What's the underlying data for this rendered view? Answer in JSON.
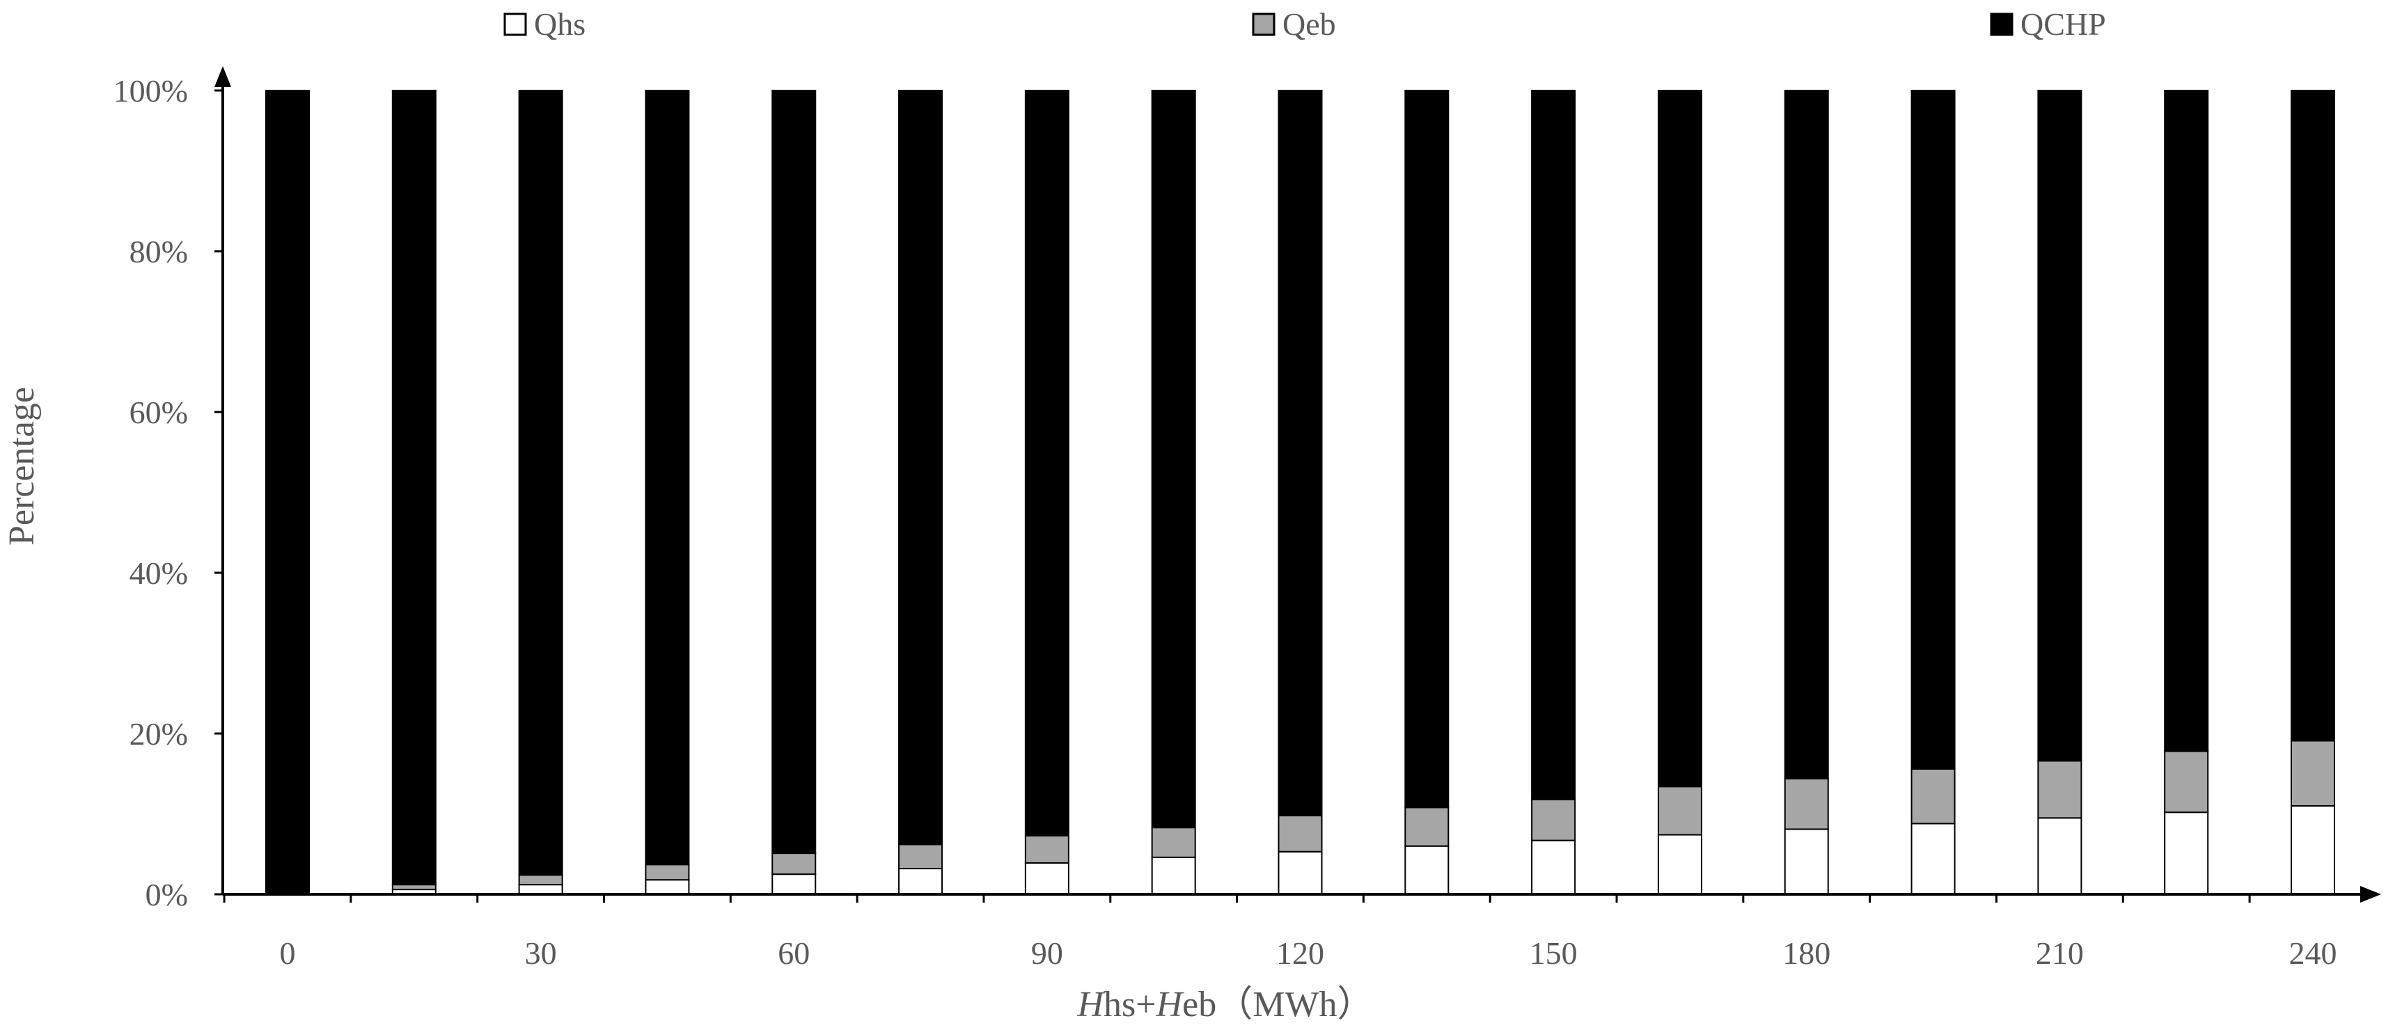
{
  "chart_data": {
    "type": "bar",
    "stacked": true,
    "percent_stacked": true,
    "x": [
      0,
      15,
      30,
      45,
      60,
      75,
      90,
      105,
      120,
      135,
      150,
      165,
      180,
      195,
      210,
      225,
      240
    ],
    "x_tick_labels": [
      "0",
      "30",
      "60",
      "90",
      "120",
      "150",
      "180",
      "210",
      "240"
    ],
    "y_tick_labels": [
      "0%",
      "20%",
      "40%",
      "60%",
      "80%",
      "100%"
    ],
    "ylim": [
      0,
      100
    ],
    "ylabel": "Percentage",
    "xlabel_italic": "H",
    "xlabel_parts": [
      {
        "text": "H",
        "italic": true
      },
      {
        "text": "hs+",
        "italic": false
      },
      {
        "text": "H",
        "italic": true
      },
      {
        "text": "eb（MWh）",
        "italic": false
      }
    ],
    "legend_position": "top",
    "series": [
      {
        "name": "Qhs",
        "color": "#ffffff",
        "values": [
          0,
          0.6,
          1.2,
          1.8,
          2.5,
          3.2,
          3.9,
          4.6,
          5.3,
          6.0,
          6.7,
          7.4,
          8.1,
          8.8,
          9.5,
          10.2,
          11.0
        ]
      },
      {
        "name": "Qeb",
        "color": "#a6a6a6",
        "values": [
          0,
          0.6,
          1.2,
          1.9,
          2.6,
          3.0,
          3.4,
          3.7,
          4.5,
          4.8,
          5.1,
          6.0,
          6.3,
          6.8,
          7.1,
          7.6,
          8.1
        ]
      },
      {
        "name": "QCHP",
        "color": "#000000",
        "values": [
          100,
          98.8,
          97.6,
          96.3,
          94.9,
          93.8,
          92.7,
          91.7,
          90.2,
          89.2,
          88.2,
          86.6,
          85.6,
          84.4,
          83.4,
          82.2,
          80.9
        ]
      }
    ],
    "grid": false
  }
}
